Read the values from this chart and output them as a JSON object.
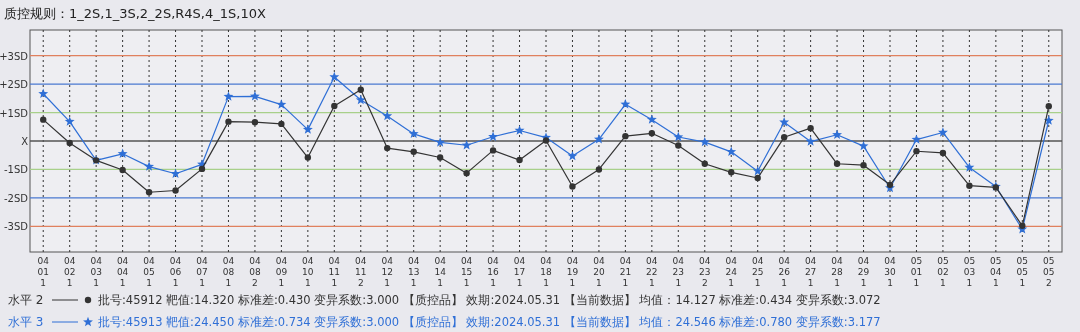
{
  "chart_data": {
    "type": "line",
    "title": "质控规则：1_2S,1_3S,2_2S,R4S,4_1S,10X",
    "categories": [
      "04\n01\n1",
      "04\n02\n1",
      "04\n03\n1",
      "04\n04\n1",
      "04\n05\n1",
      "04\n06\n1",
      "04\n07\n1",
      "04\n08\n1",
      "04\n08\n2",
      "04\n09\n1",
      "04\n10\n1",
      "04\n11\n1",
      "04\n11\n2",
      "04\n12\n1",
      "04\n13\n1",
      "04\n14\n1",
      "04\n15\n1",
      "04\n16\n1",
      "04\n17\n1",
      "04\n18\n1",
      "04\n19\n1",
      "04\n20\n1",
      "04\n21\n1",
      "04\n22\n1",
      "04\n23\n1",
      "04\n23\n2",
      "04\n24\n1",
      "04\n25\n1",
      "04\n26\n1",
      "04\n27\n1",
      "04\n28\n1",
      "04\n29\n1",
      "04\n30\n1",
      "05\n01\n1",
      "05\n02\n1",
      "05\n03\n1",
      "05\n04\n1",
      "05\n05\n1",
      "05\n05\n2"
    ],
    "series": [
      {
        "name": "水平 2",
        "color": "#333333",
        "marker": "circle",
        "values": [
          0.75,
          -0.07,
          -0.68,
          -1.02,
          -1.8,
          -1.74,
          -0.98,
          0.68,
          0.66,
          0.6,
          -0.58,
          1.23,
          1.8,
          -0.25,
          -0.38,
          -0.58,
          -1.13,
          -0.33,
          -0.67,
          0.02,
          -1.6,
          -1.0,
          0.17,
          0.27,
          -0.16,
          -0.8,
          -1.1,
          -1.3,
          0.13,
          0.45,
          -0.8,
          -0.85,
          -1.54,
          -0.36,
          -0.42,
          -1.57,
          -1.63,
          -2.98,
          1.22
        ]
      },
      {
        "name": "水平 3",
        "color": "#2f6fd6",
        "marker": "star",
        "values": [
          1.66,
          0.68,
          -0.68,
          -0.45,
          -0.9,
          -1.15,
          -0.82,
          1.56,
          1.57,
          1.28,
          0.4,
          2.25,
          1.44,
          0.88,
          0.25,
          -0.05,
          -0.15,
          0.15,
          0.37,
          0.12,
          -0.53,
          0.06,
          1.29,
          0.75,
          0.14,
          -0.04,
          -0.38,
          -1.06,
          0.66,
          -0.02,
          0.22,
          -0.18,
          -1.65,
          0.05,
          0.3,
          -0.93,
          -1.6,
          -3.1,
          0.72
        ]
      }
    ],
    "ylim": [
      -3.9,
      3.9
    ],
    "yticks": [
      {
        "value": 3,
        "label": "+3SD"
      },
      {
        "value": 2,
        "label": "+2SD"
      },
      {
        "value": 1,
        "label": "+1SD"
      },
      {
        "value": 0,
        "label": "X"
      },
      {
        "value": -1,
        "label": "-1SD"
      },
      {
        "value": -2,
        "label": "-2SD"
      },
      {
        "value": -3,
        "label": "-3SD"
      }
    ],
    "ref_lines": [
      {
        "axis": "y",
        "value": 3,
        "color": "#e0805e"
      },
      {
        "axis": "y",
        "value": 2,
        "color": "#4a78d0"
      },
      {
        "axis": "y",
        "value": 1,
        "color": "#a8d08a"
      },
      {
        "axis": "y",
        "value": 0,
        "color": "#555555"
      },
      {
        "axis": "y",
        "value": -1,
        "color": "#a8d08a"
      },
      {
        "axis": "y",
        "value": -2,
        "color": "#4a78d0"
      },
      {
        "axis": "y",
        "value": -3,
        "color": "#e0805e"
      }
    ],
    "grid": "x",
    "legend": "bottom",
    "annotations": [
      "批号:45912 靶值:14.320 标准差:0.430 变异系数:3.000 【质控品】 效期:2024.05.31 【当前数据】 均值：14.127 标准差:0.434 变异系数:3.072",
      "批号:45913 靶值:24.450 标准差:0.734 变异系数:3.000 【质控品】 效期:2024.05.31 【当前数据】 均值：24.546 标准差:0.780 变异系数:3.177"
    ]
  }
}
